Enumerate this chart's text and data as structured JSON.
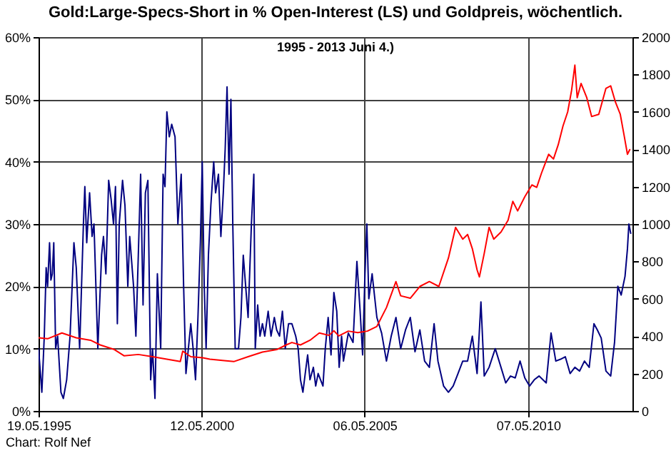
{
  "chart_data": {
    "type": "line",
    "title": "Gold:Large-Specs-Short in % Open-Interest (LS)  und Goldpreis, wöchentlich.",
    "subtitle": "1995 -  2013 Juni 4.)",
    "annotations": [
      "Chart: Rolf Nef"
    ],
    "xlim": [
      "1995-05-19",
      "2013-07-15"
    ],
    "xticks": [
      {
        "value": "1995-05-19",
        "label": "19.05.1995"
      },
      {
        "value": "2000-05-12",
        "label": "12.05.2000"
      },
      {
        "value": "2005-05-06",
        "label": "06.05.2005"
      },
      {
        "value": "2010-05-07",
        "label": "07.05.2010"
      }
    ],
    "ylim": [
      0,
      60
    ],
    "yticks": [
      {
        "value": 0,
        "label": "0%"
      },
      {
        "value": 10,
        "label": "10%"
      },
      {
        "value": 20,
        "label": "20%"
      },
      {
        "value": 30,
        "label": "30%"
      },
      {
        "value": 40,
        "label": "40%"
      },
      {
        "value": 50,
        "label": "50%"
      },
      {
        "value": 60,
        "label": "60%"
      }
    ],
    "y2lim": [
      0,
      2000
    ],
    "y2ticks": [
      0,
      200,
      400,
      600,
      800,
      1000,
      1200,
      1400,
      1600,
      1800,
      2000
    ],
    "grid": true,
    "series": [
      {
        "color": "#000080",
        "x": [
          "1995-05-19",
          "1995-06-25",
          "1995-07-22",
          "1995-08-12",
          "1995-08-28",
          "1995-09-19",
          "1995-10-04",
          "1995-10-20",
          "1995-11-05",
          "1995-11-26",
          "1995-12-18",
          "1996-01-24",
          "1996-02-20",
          "1996-03-28",
          "1996-05-05",
          "1996-06-17",
          "1996-07-13",
          "1996-08-20",
          "1996-10-01",
          "1996-10-17",
          "1996-11-07",
          "1996-12-09",
          "1997-01-06",
          "1997-01-27",
          "1997-03-11",
          "1997-04-22",
          "1997-05-13",
          "1997-06-09",
          "1997-07-10",
          "1997-08-06",
          "1997-09-02",
          "1997-09-24",
          "1997-10-15",
          "1997-11-05",
          "1997-12-12",
          "1998-01-08",
          "1998-02-09",
          "1998-03-02",
          "1998-04-14",
          "1998-05-10",
          "1998-06-06",
          "1998-07-02",
          "1998-07-29",
          "1998-08-24",
          "1998-09-21",
          "1998-10-22",
          "1998-11-12",
          "1998-12-09",
          "1999-01-05",
          "1999-02-11",
          "1999-03-10",
          "1999-03-31",
          "1999-04-21",
          "1999-05-18",
          "1999-06-14",
          "1999-07-21",
          "1999-08-22",
          "1999-09-28",
          "1999-10-25",
          "1999-11-20",
          "1999-12-17",
          "2000-01-13",
          "2000-02-08",
          "2000-03-06",
          "2000-04-02",
          "2000-04-29",
          "2000-05-20",
          "2000-06-11",
          "2000-07-02",
          "2000-07-28",
          "2000-08-24",
          "2000-09-25",
          "2000-10-16",
          "2000-11-17",
          "2000-12-14",
          "2001-01-10",
          "2001-01-31",
          "2001-02-21",
          "2001-03-15",
          "2001-04-05",
          "2001-04-26",
          "2001-05-23",
          "2001-06-29",
          "2001-07-26",
          "2001-08-21",
          "2001-09-17",
          "2001-10-14",
          "2001-11-20",
          "2001-12-17",
          "2002-01-02",
          "2002-01-29",
          "2002-02-24",
          "2002-03-23",
          "2002-04-18",
          "2002-05-26",
          "2002-06-27",
          "2002-08-03",
          "2002-08-29",
          "2002-09-30",
          "2002-11-01",
          "2002-12-03",
          "2003-01-09",
          "2003-02-15",
          "2003-03-30",
          "2003-04-26",
          "2003-05-22",
          "2003-06-18",
          "2003-07-14",
          "2003-08-10",
          "2003-09-05",
          "2003-10-13",
          "2003-11-08",
          "2003-12-05",
          "2004-01-01",
          "2004-01-28",
          "2004-02-23",
          "2004-03-26",
          "2004-04-27",
          "2004-05-29",
          "2004-06-30",
          "2004-07-27",
          "2004-08-23",
          "2004-09-13",
          "2004-11-06",
          "2004-12-29",
          "2005-02-10",
          "2005-03-18",
          "2005-04-15",
          "2005-05-11",
          "2005-06-01",
          "2005-06-23",
          "2005-07-30",
          "2005-09-21",
          "2005-11-13",
          "2006-01-06",
          "2006-02-28",
          "2006-04-22",
          "2006-06-14",
          "2006-08-07",
          "2006-09-29",
          "2006-11-21",
          "2007-01-14",
          "2007-03-08",
          "2007-04-30",
          "2007-06-22",
          "2007-08-04",
          "2007-10-06",
          "2007-11-29",
          "2008-01-21",
          "2008-03-15",
          "2008-05-07",
          "2008-06-30",
          "2008-08-22",
          "2008-10-14",
          "2008-11-26",
          "2009-01-02",
          "2009-02-25",
          "2009-05-05",
          "2009-07-08",
          "2009-08-30",
          "2009-10-22",
          "2009-12-14",
          "2010-02-06",
          "2010-03-31",
          "2010-05-23",
          "2010-07-15",
          "2010-09-06",
          "2010-11-25",
          "2011-01-18",
          "2011-03-12",
          "2011-05-04",
          "2011-06-26",
          "2011-08-19",
          "2011-10-11",
          "2011-12-03",
          "2012-01-26",
          "2012-03-19",
          "2012-05-11",
          "2012-06-18",
          "2012-07-31",
          "2012-09-22",
          "2012-11-14",
          "2012-12-27",
          "2013-02-02",
          "2013-03-11",
          "2013-04-23",
          "2013-05-20",
          "2013-06-05",
          "2013-06-26"
        ],
        "values": [
          10,
          3,
          12,
          23,
          20,
          27,
          21,
          22,
          27,
          10,
          12,
          3,
          2,
          5,
          12,
          27,
          23,
          10,
          30,
          36,
          27,
          35,
          28,
          30,
          10,
          25,
          28,
          22,
          37,
          34,
          30,
          36,
          14,
          30,
          37,
          33,
          20,
          28,
          20,
          12,
          25,
          38,
          17,
          35,
          37,
          5,
          10,
          2,
          22,
          10,
          38,
          36,
          48,
          44,
          46,
          44,
          30,
          38,
          20,
          6,
          10,
          14,
          10,
          5,
          15,
          27,
          40,
          20,
          10,
          25,
          33,
          40,
          35,
          38,
          28,
          35,
          42,
          52,
          38,
          50,
          30,
          10,
          10,
          15,
          25,
          20,
          15,
          30,
          38,
          10,
          17,
          12,
          14,
          12,
          16,
          12,
          15,
          13,
          12,
          16,
          10,
          14,
          14,
          12,
          10,
          5,
          3,
          6,
          9,
          5,
          7,
          4,
          6,
          5,
          4,
          10,
          15,
          9,
          19,
          16,
          7,
          12,
          8,
          12.5,
          11,
          24,
          16,
          9,
          22,
          30,
          18,
          22,
          15,
          12.5,
          8,
          12,
          15,
          10,
          13,
          15,
          9.5,
          13,
          8,
          7,
          14,
          8,
          4,
          3,
          4,
          6,
          8,
          8,
          12,
          6,
          17.5,
          5.6,
          7,
          10,
          7,
          4.5,
          5.6,
          5.3,
          8,
          5.3,
          4,
          5,
          5.6,
          4.5,
          12.5,
          8,
          8.3,
          8.7,
          6,
          7,
          6.4,
          8,
          7,
          14,
          13,
          11.7,
          6.4,
          5.6,
          11,
          20,
          18.6,
          21.6,
          26,
          30,
          28.5
        ]
      },
      {
        "color": "#ff0000",
        "axis": "y2",
        "x": [
          "1995-05-19",
          "1995-08-28",
          "1996-02-04",
          "1996-07-13",
          "1996-12-20",
          "1997-04-06",
          "1997-09-13",
          "1997-12-28",
          "1998-06-06",
          "1998-11-12",
          "1999-04-21",
          "1999-09-18",
          "1999-10-15",
          "2000-01-13",
          "2000-05-26",
          "2000-08-13",
          "2001-01-21",
          "2001-05-07",
          "2001-10-14",
          "2002-03-23",
          "2002-08-29",
          "2002-12-13",
          "2003-02-15",
          "2003-05-22",
          "2003-09-05",
          "2003-12-18",
          "2004-04-06",
          "2004-05-29",
          "2004-07-22",
          "2004-11-06",
          "2005-02-20",
          "2005-06-07",
          "2005-09-21",
          "2006-01-06",
          "2006-04-22",
          "2006-06-14",
          "2006-09-29",
          "2007-01-14",
          "2007-04-30",
          "2007-08-14",
          "2007-11-29",
          "2008-02-17",
          "2008-05-07",
          "2008-06-30",
          "2008-08-22",
          "2008-10-14",
          "2008-11-09",
          "2009-01-02",
          "2009-02-25",
          "2009-04-18",
          "2009-07-08",
          "2009-09-25",
          "2009-11-17",
          "2010-01-10",
          "2010-03-31",
          "2010-06-18",
          "2010-08-11",
          "2010-10-03",
          "2010-12-22",
          "2011-02-14",
          "2011-04-08",
          "2011-05-31",
          "2011-07-23",
          "2011-09-04",
          "2011-10-11",
          "2011-11-06",
          "2011-12-19",
          "2012-02-21",
          "2012-04-15",
          "2012-07-04",
          "2012-09-22",
          "2012-11-14",
          "2013-01-07",
          "2013-03-01",
          "2013-04-13",
          "2013-05-20",
          "2013-06-15"
        ],
        "values": [
          391,
          386,
          417,
          391,
          378,
          353,
          328,
          295,
          302,
          290,
          277,
          264,
          320,
          290,
          284,
          277,
          269,
          264,
          290,
          315,
          328,
          353,
          366,
          353,
          378,
          417,
          404,
          429,
          401,
          427,
          419,
          427,
          452,
          553,
          692,
          616,
          603,
          666,
          692,
          666,
          818,
          982,
          919,
          944,
          868,
          755,
          717,
          843,
          982,
          919,
          957,
          1020,
          1121,
          1070,
          1146,
          1209,
          1196,
          1272,
          1373,
          1348,
          1424,
          1524,
          1600,
          1714,
          1850,
          1676,
          1752,
          1676,
          1575,
          1587,
          1726,
          1739,
          1651,
          1587,
          1474,
          1373,
          1398
        ]
      }
    ]
  }
}
